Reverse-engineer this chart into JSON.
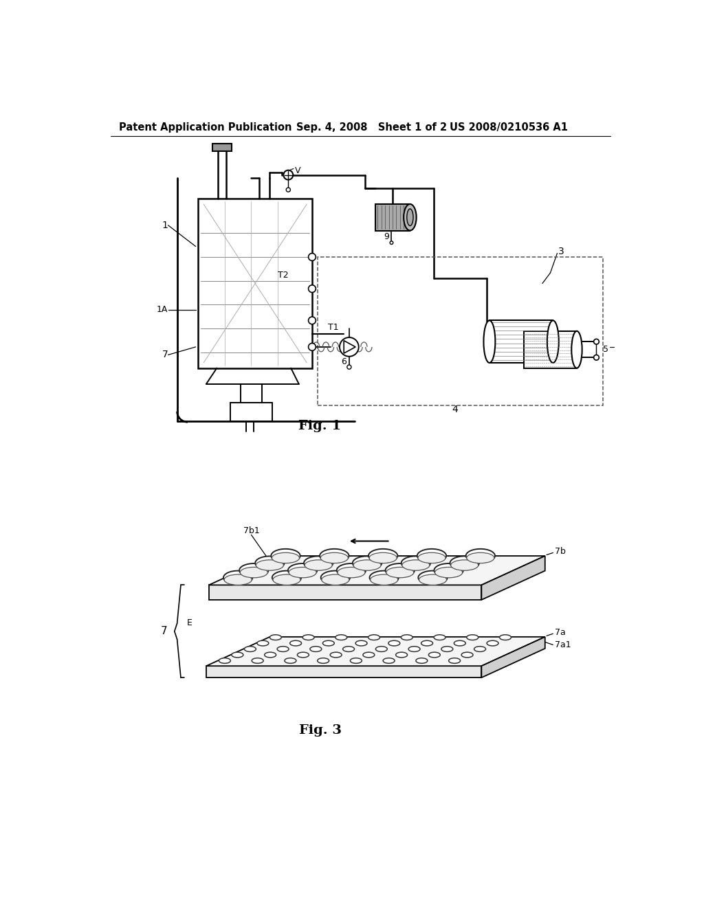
{
  "background_color": "#ffffff",
  "header_left": "Patent Application Publication",
  "header_center": "Sep. 4, 2008   Sheet 1 of 2",
  "header_right": "US 2008/0210536 A1",
  "fig1_label": "Fig. 1",
  "fig3_label": "Fig. 3"
}
